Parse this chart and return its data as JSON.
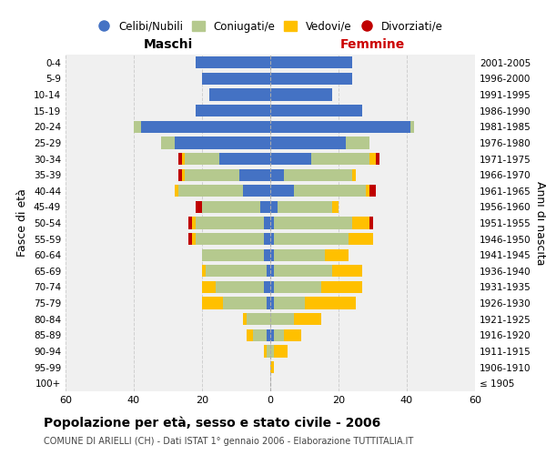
{
  "age_groups": [
    "100+",
    "95-99",
    "90-94",
    "85-89",
    "80-84",
    "75-79",
    "70-74",
    "65-69",
    "60-64",
    "55-59",
    "50-54",
    "45-49",
    "40-44",
    "35-39",
    "30-34",
    "25-29",
    "20-24",
    "15-19",
    "10-14",
    "5-9",
    "0-4"
  ],
  "birth_years": [
    "≤ 1905",
    "1906-1910",
    "1911-1915",
    "1916-1920",
    "1921-1925",
    "1926-1930",
    "1931-1935",
    "1936-1940",
    "1941-1945",
    "1946-1950",
    "1951-1955",
    "1956-1960",
    "1961-1965",
    "1966-1970",
    "1971-1975",
    "1976-1980",
    "1981-1985",
    "1986-1990",
    "1991-1995",
    "1996-2000",
    "2001-2005"
  ],
  "maschi": {
    "celibi": [
      0,
      0,
      0,
      1,
      0,
      1,
      2,
      1,
      2,
      2,
      2,
      3,
      8,
      9,
      15,
      28,
      38,
      22,
      18,
      20,
      22
    ],
    "coniugati": [
      0,
      0,
      1,
      4,
      7,
      13,
      14,
      18,
      18,
      20,
      20,
      17,
      19,
      16,
      10,
      4,
      2,
      0,
      0,
      0,
      0
    ],
    "vedovi": [
      0,
      0,
      1,
      2,
      1,
      6,
      4,
      1,
      0,
      1,
      1,
      0,
      1,
      1,
      1,
      0,
      0,
      0,
      0,
      0,
      0
    ],
    "divorziati": [
      0,
      0,
      0,
      0,
      0,
      0,
      0,
      0,
      0,
      1,
      1,
      2,
      0,
      1,
      1,
      0,
      0,
      0,
      0,
      0,
      0
    ]
  },
  "femmine": {
    "nubili": [
      0,
      0,
      0,
      1,
      0,
      1,
      1,
      1,
      1,
      1,
      1,
      2,
      7,
      4,
      12,
      22,
      41,
      27,
      18,
      24,
      24
    ],
    "coniugate": [
      0,
      0,
      1,
      3,
      7,
      9,
      14,
      17,
      15,
      22,
      23,
      16,
      21,
      20,
      17,
      7,
      1,
      0,
      0,
      0,
      0
    ],
    "vedove": [
      0,
      1,
      4,
      5,
      8,
      15,
      12,
      9,
      7,
      7,
      5,
      2,
      1,
      1,
      2,
      0,
      0,
      0,
      0,
      0,
      0
    ],
    "divorziate": [
      0,
      0,
      0,
      0,
      0,
      0,
      0,
      0,
      0,
      0,
      1,
      0,
      2,
      0,
      1,
      0,
      0,
      0,
      0,
      0,
      0
    ]
  },
  "colors": {
    "celibi": "#4472C4",
    "coniugati": "#b5c98e",
    "vedovi": "#ffc000",
    "divorziati": "#c00000"
  },
  "title": "Popolazione per età, sesso e stato civile - 2006",
  "subtitle": "COMUNE DI ARIELLI (CH) - Dati ISTAT 1° gennaio 2006 - Elaborazione TUTTITALIA.IT",
  "xlabel_left": "Maschi",
  "xlabel_right": "Femmine",
  "ylabel_left": "Fasce di età",
  "ylabel_right": "Anni di nascita",
  "xlim": 60,
  "legend_labels": [
    "Celibi/Nubili",
    "Coniugati/e",
    "Vedovi/e",
    "Divorziati/e"
  ],
  "background_color": "#ffffff",
  "grid_color": "#cccccc"
}
